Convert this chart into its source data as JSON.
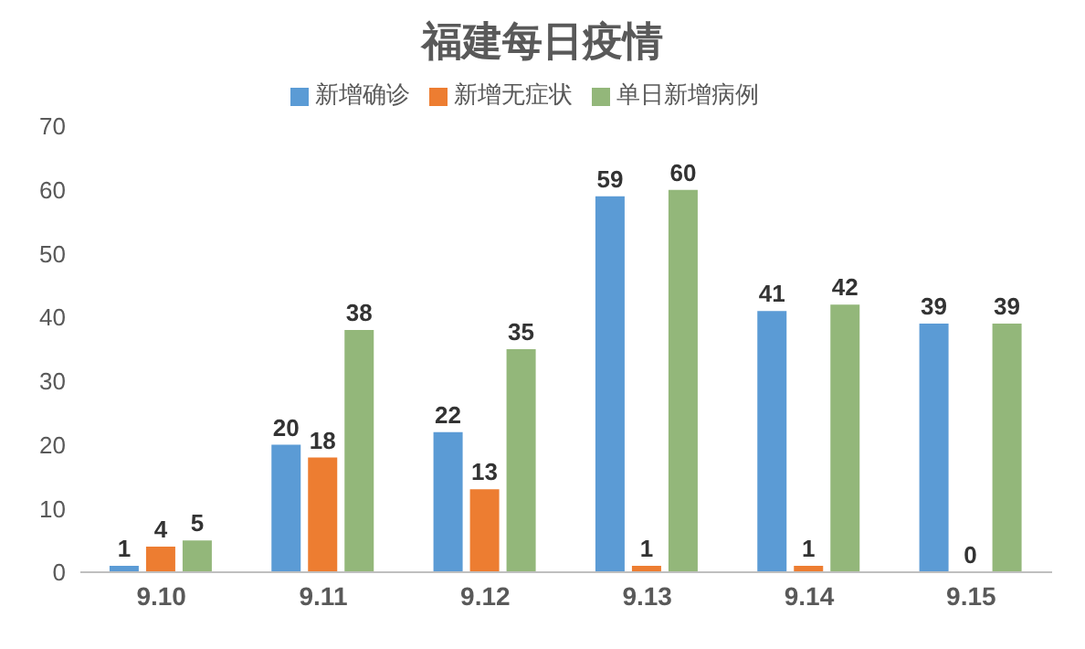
{
  "chart_data": {
    "type": "bar",
    "title": "福建每日疫情",
    "categories": [
      "9.10",
      "9.11",
      "9.12",
      "9.13",
      "9.14",
      "9.15"
    ],
    "series": [
      {
        "name": "新增确诊",
        "color": "#5b9bd5",
        "values": [
          1,
          20,
          22,
          59,
          41,
          39
        ]
      },
      {
        "name": "新增无症状",
        "color": "#ed7d31",
        "values": [
          4,
          18,
          13,
          1,
          1,
          0
        ]
      },
      {
        "name": "单日新增病例",
        "color": "#93b77a",
        "values": [
          5,
          38,
          35,
          60,
          42,
          39
        ]
      }
    ],
    "ylim": [
      0,
      70
    ],
    "yticks": [
      0,
      10,
      20,
      30,
      40,
      50,
      60,
      70
    ],
    "grid": false,
    "legend": "top",
    "data_labels": true
  }
}
